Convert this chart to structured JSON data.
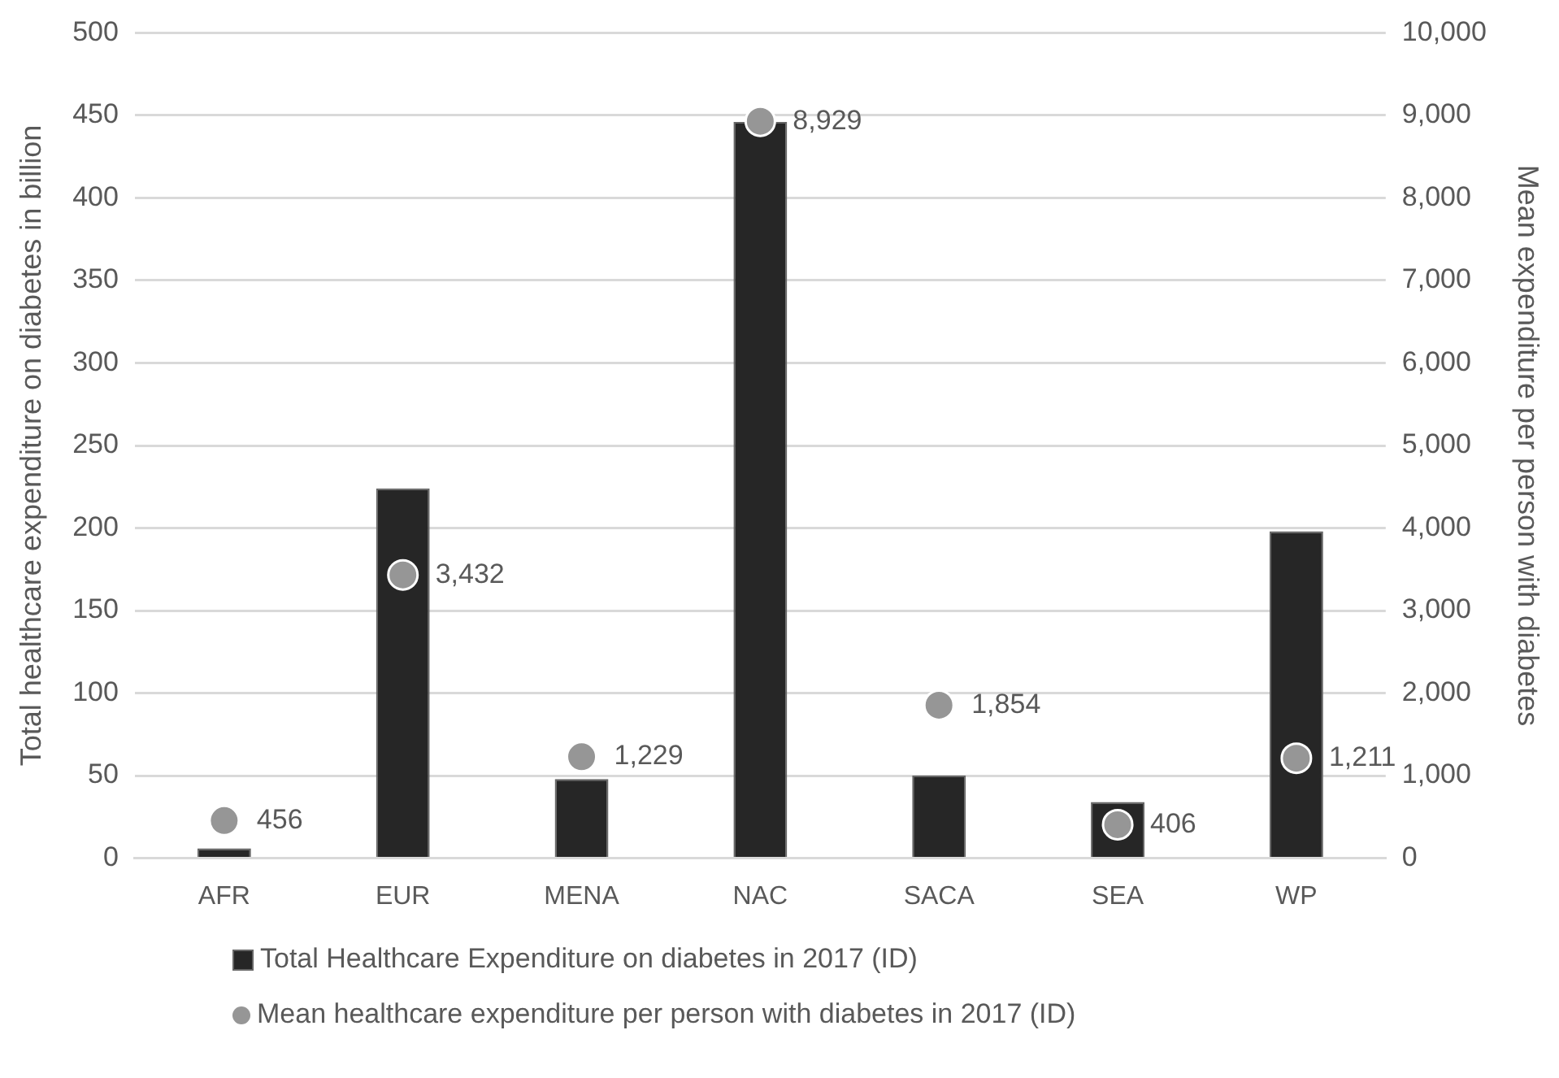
{
  "chart_data": {
    "type": "bar",
    "ylabel": "Total healthcare expenditure on diabetes in billion",
    "y2label": "Mean expenditure per person with diabetes",
    "categories": [
      "AFR",
      "EUR",
      "MENA",
      "NAC",
      "SACA",
      "SEA",
      "WP"
    ],
    "series": [
      {
        "name": "Total Healthcare Expenditure on diabetes in 2017 (ID)",
        "color": "#262626",
        "values": [
          6,
          224,
          48,
          446,
          50,
          34,
          198
        ]
      },
      {
        "name": "Mean healthcare expenditure per person with diabetes in 2017 (ID)",
        "type": "scatter",
        "axis": "y2",
        "color": "#969696",
        "values": [
          456,
          3432,
          1229,
          8929,
          1854,
          406,
          1211
        ],
        "value_labels": [
          "456",
          "3,432",
          "1,229",
          "8,929",
          "1,854",
          "406",
          "1,211"
        ]
      }
    ],
    "ylim": [
      0,
      500
    ],
    "yticks": [
      0,
      50,
      100,
      150,
      200,
      250,
      300,
      350,
      400,
      450,
      500
    ],
    "y2lim": [
      0,
      10000
    ],
    "y2ticks": [
      {
        "value": 0,
        "label": "0"
      },
      {
        "value": 1000,
        "label": "1,000"
      },
      {
        "value": 2000,
        "label": "2,000"
      },
      {
        "value": 3000,
        "label": "3,000"
      },
      {
        "value": 4000,
        "label": "4,000"
      },
      {
        "value": 5000,
        "label": "5,000"
      },
      {
        "value": 6000,
        "label": "6,000"
      },
      {
        "value": 7000,
        "label": "7,000"
      },
      {
        "value": 8000,
        "label": "8,000"
      },
      {
        "value": 9000,
        "label": "9,000"
      },
      {
        "value": 10000,
        "label": "10,000"
      }
    ],
    "grid": "y",
    "legend": "bottom",
    "marker": "circle"
  }
}
